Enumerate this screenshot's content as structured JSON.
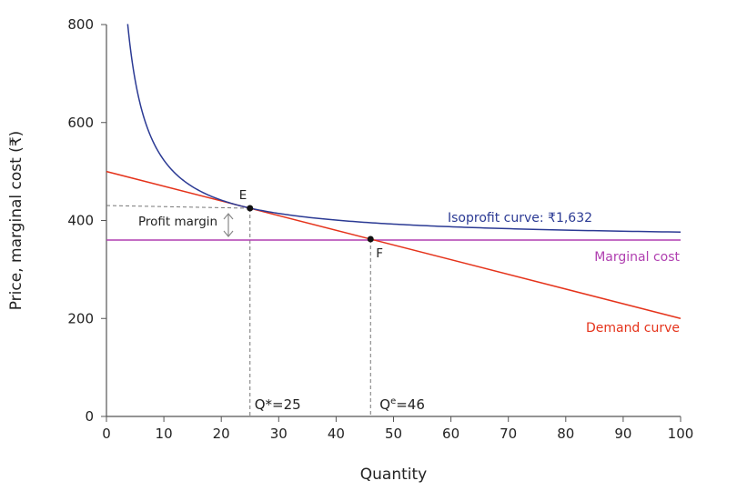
{
  "chart_data": {
    "type": "line",
    "xlabel": "Quantity",
    "ylabel": "Price, marginal cost (₹)",
    "xlim": [
      0,
      100
    ],
    "ylim": [
      0,
      800
    ],
    "xticks": [
      0,
      10,
      20,
      30,
      40,
      50,
      60,
      70,
      80,
      90,
      100
    ],
    "yticks": [
      0,
      200,
      400,
      600,
      800
    ],
    "grid": false,
    "series": [
      {
        "name": "Isoprofit curve: ₹1,632",
        "color": "#2b3a94",
        "equation": "P = 360 + 1632/Q",
        "profit": 1632,
        "x_start": 3.7,
        "x_end": 100
      },
      {
        "name": "Marginal cost",
        "color": "#b03fb0",
        "value": 360
      },
      {
        "name": "Demand curve",
        "color": "#e5331b",
        "x": [
          0,
          100
        ],
        "y": [
          500,
          200
        ]
      }
    ],
    "points": [
      {
        "label": "E",
        "x": 25,
        "y": 425
      },
      {
        "label": "F",
        "x": 46,
        "y": 362
      }
    ],
    "annotations": {
      "profit_margin": "Profit margin",
      "q_star": "Q*=25",
      "q_e_base": "Q",
      "q_e_sup": "e",
      "q_e_value": "=46"
    }
  }
}
